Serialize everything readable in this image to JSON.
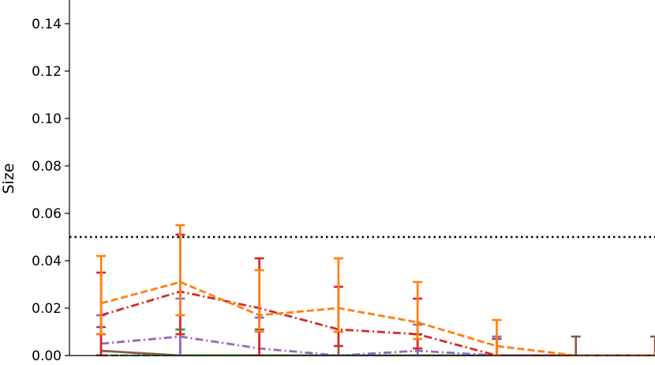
{
  "chart_data": {
    "type": "line",
    "title": "",
    "xlabel": "",
    "ylabel": "Size",
    "ylim": [
      0,
      0.15
    ],
    "yticks": [
      0.0,
      0.02,
      0.04,
      0.06,
      0.08,
      0.1,
      0.12,
      0.14
    ],
    "ytick_labels": [
      "0.00",
      "0.02",
      "0.04",
      "0.06",
      "0.08",
      "0.10",
      "0.12",
      "0.14"
    ],
    "x": [
      1,
      2,
      3,
      4,
      5,
      6,
      7,
      8
    ],
    "reference_line": {
      "y": 0.05,
      "style": "dotted",
      "color": "#000000"
    },
    "grid": false,
    "series": [
      {
        "color": "#ff7f0e",
        "dash": "dashed",
        "values": [
          0.022,
          0.031,
          0.017,
          0.02,
          0.014,
          0.004,
          0.0,
          0.0
        ],
        "err_low": [
          0.009,
          0.017,
          0.01,
          0.01,
          0.007,
          0.0,
          null,
          null
        ],
        "err_high": [
          0.042,
          0.055,
          0.036,
          0.041,
          0.031,
          0.015,
          null,
          null
        ]
      },
      {
        "color": "#d62728",
        "dash": "dashdot",
        "values": [
          0.017,
          0.027,
          0.02,
          0.011,
          0.009,
          0.0,
          0.0,
          0.0
        ],
        "err_low": [
          0.0,
          0.009,
          0.0,
          0.004,
          0.003,
          null,
          null,
          null
        ],
        "err_high": [
          0.035,
          0.051,
          0.041,
          0.029,
          0.024,
          null,
          null,
          null
        ]
      },
      {
        "color": "#9467bd",
        "dash": "dashdot",
        "values": [
          0.005,
          0.008,
          0.003,
          0.0,
          0.002,
          0.0,
          0.0,
          0.0
        ],
        "err_low": [
          0.0,
          0.0,
          0.0,
          null,
          0.0,
          0.0,
          null,
          null
        ],
        "err_high": [
          0.017,
          0.024,
          0.016,
          null,
          0.013,
          0.008,
          null,
          null
        ]
      },
      {
        "color": "#2ca02c",
        "dash": "dashed",
        "values": [
          0.0,
          0.0,
          0.0,
          0.0,
          0.0,
          0.0,
          0.0,
          0.0
        ],
        "err_low": [
          0.0,
          0.0,
          null,
          null,
          null,
          null,
          null,
          null
        ],
        "err_high": [
          0.009,
          0.011,
          null,
          null,
          null,
          null,
          null,
          null
        ]
      },
      {
        "color": "#8c564b",
        "dash": "solid",
        "values": [
          0.002,
          0.0,
          0.0,
          0.0,
          0.0,
          0.0,
          0.0,
          0.0
        ],
        "err_low": [
          0.0,
          null,
          0.0,
          0.0,
          0.0,
          0.0,
          0.0,
          0.0
        ],
        "err_high": [
          0.012,
          null,
          0.011,
          0.01,
          0.009,
          0.007,
          0.008,
          0.008
        ]
      },
      {
        "color": "#1f77b4",
        "dash": "dotted",
        "values": [
          0.0,
          0.0,
          0.0,
          0.0,
          0.0,
          0.0,
          0.0,
          0.0
        ],
        "err_low": [
          null,
          null,
          null,
          null,
          null,
          null,
          null,
          null
        ],
        "err_high": [
          null,
          null,
          null,
          null,
          null,
          null,
          null,
          null
        ]
      }
    ]
  }
}
